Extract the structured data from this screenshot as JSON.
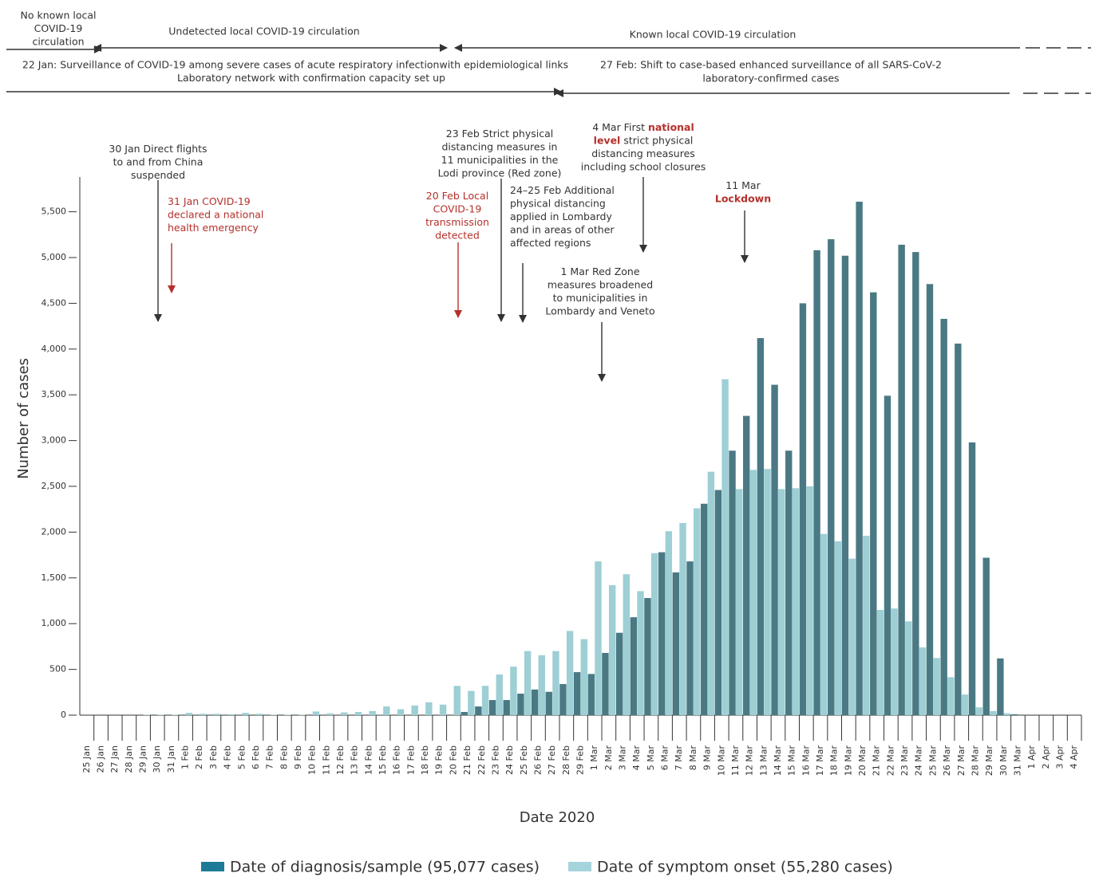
{
  "chart_data": {
    "type": "bar",
    "categories": [
      "25 Jan",
      "26 Jan",
      "27 Jan",
      "28 Jan",
      "29 Jan",
      "30 Jan",
      "31 Jan",
      "1 Feb",
      "2 Feb",
      "3 Feb",
      "4 Feb",
      "5 Feb",
      "6 Feb",
      "7 Feb",
      "8 Feb",
      "9 Feb",
      "10 Feb",
      "11 Feb",
      "12 Feb",
      "13 Feb",
      "14 Feb",
      "15 Feb",
      "16 Feb",
      "17 Feb",
      "18 Feb",
      "19 Feb",
      "20 Feb",
      "21 Feb",
      "22 Feb",
      "23 Feb",
      "24 Feb",
      "25 Feb",
      "26 Feb",
      "27 Feb",
      "28 Feb",
      "29 Feb",
      "1 Mar",
      "2 Mar",
      "3 Mar",
      "4 Mar",
      "5 Mar",
      "6 Mar",
      "7 Mar",
      "8 Mar",
      "9 Mar",
      "10 Mar",
      "11 Mar",
      "12 Mar",
      "13 Mar",
      "14 Mar",
      "15 Mar",
      "16 Mar",
      "17 Mar",
      "18 Mar",
      "19 Mar",
      "20 Mar",
      "21 Mar",
      "22 Mar",
      "23 Mar",
      "24 Mar",
      "25 Mar",
      "26 Mar",
      "27 Mar",
      "28 Mar",
      "29 Mar",
      "30 Mar",
      "31 Mar",
      "1 Apr",
      "2 Apr",
      "3 Apr",
      "4 Apr"
    ],
    "series": [
      {
        "name": "Date of diagnosis/sample (95,077 cases)",
        "color": "#4a7984",
        "values": [
          0,
          0,
          0,
          0,
          0,
          0,
          0,
          0,
          0,
          0,
          0,
          0,
          0,
          0,
          0,
          0,
          0,
          0,
          0,
          0,
          0,
          5,
          0,
          0,
          0,
          0,
          0,
          35,
          95,
          165,
          165,
          235,
          280,
          255,
          340,
          470,
          450,
          680,
          900,
          1070,
          1280,
          1780,
          1560,
          1680,
          2310,
          2460,
          2890,
          3270,
          4120,
          3610,
          2890,
          4500,
          5080,
          5200,
          5020,
          5610,
          4620,
          3490,
          5140,
          5060,
          4710,
          4330,
          4060,
          2980,
          1720,
          620,
          10,
          0,
          0,
          0,
          0
        ]
      },
      {
        "name": "Date of symptom onset (55,280 cases)",
        "color": "#9dcfd5",
        "values": [
          0,
          0,
          0,
          0,
          5,
          5,
          5,
          25,
          15,
          15,
          10,
          25,
          15,
          5,
          5,
          5,
          40,
          20,
          30,
          35,
          45,
          95,
          65,
          105,
          140,
          115,
          320,
          265,
          320,
          445,
          530,
          700,
          655,
          700,
          920,
          830,
          1680,
          1420,
          1540,
          1355,
          1770,
          2010,
          2100,
          2260,
          2660,
          3670,
          2470,
          2680,
          2690,
          2470,
          2480,
          2500,
          1980,
          1900,
          1710,
          1960,
          1150,
          1165,
          1025,
          740,
          625,
          415,
          225,
          85,
          45,
          20,
          0,
          0,
          0,
          0,
          0
        ]
      }
    ],
    "legend_colors": [
      "#1e7b97",
      "#a6d4dc"
    ],
    "ylim": [
      0,
      5880
    ],
    "yticks": [
      0,
      500,
      {
        "value": 1000,
        "label": "1,000"
      },
      {
        "value": 1500,
        "label": "1,500"
      },
      {
        "value": 2000,
        "label": "2,000"
      },
      {
        "value": 2500,
        "label": "2,500"
      },
      {
        "value": 3000,
        "label": "3,000"
      },
      {
        "value": 3500,
        "label": "3,500"
      },
      {
        "value": 4000,
        "label": "4,000"
      },
      {
        "value": 4500,
        "label": "4,500"
      },
      {
        "value": 5000,
        "label": "5,000"
      },
      {
        "value": 5500,
        "label": "5,500"
      }
    ],
    "ylabel": "Number of cases",
    "xlabel": "Date 2020",
    "emphasis_color": "#b5302b",
    "timeline": {
      "periods": [
        {
          "lines": [
            "No known local",
            "COVID-19",
            "circulation"
          ]
        },
        {
          "lines": [
            "Undetected local COVID-19 circulation"
          ]
        },
        {
          "lines": [
            "Known local COVID-19 circulation"
          ]
        }
      ],
      "surveillance": [
        {
          "lines": [
            "22 Jan: Surveillance of COVID-19 among severe cases of acute respiratory infectionwith epidemiological links",
            "Laboratory network with confirmation capacity set up"
          ]
        },
        {
          "lines": [
            "27 Feb: Shift to case-based enhanced surveillance of all SARS-CoV-2",
            "laboratory-confirmed cases"
          ]
        }
      ]
    },
    "annotations": [
      {
        "color": "#333333",
        "lines": [
          [
            "30 Jan Direct flights"
          ],
          [
            "to and from China"
          ],
          [
            "suspended"
          ]
        ]
      },
      {
        "color": "#b5302b",
        "lines": [
          [
            "31 Jan COVID-19"
          ],
          [
            "declared a national"
          ],
          [
            "health emergency"
          ]
        ]
      },
      {
        "color": "#b5302b",
        "lines": [
          [
            "20 Feb Local"
          ],
          [
            "COVID-19"
          ],
          [
            "transmission"
          ],
          [
            "detected"
          ]
        ]
      },
      {
        "color": "#333333",
        "lines": [
          [
            "23 Feb Strict physical"
          ],
          [
            "distancing measures in"
          ],
          [
            "11 municipalities in the"
          ],
          [
            "Lodi province (Red zone)"
          ]
        ]
      },
      {
        "color": "#333333",
        "lines": [
          [
            "24–25 Feb Additional"
          ],
          [
            "physical distancing"
          ],
          [
            "applied in Lombardy"
          ],
          [
            "and in areas of other"
          ],
          [
            "affected regions"
          ]
        ]
      },
      {
        "color": "#333333",
        "lines": [
          [
            "1 Mar Red Zone"
          ],
          [
            "measures broadened"
          ],
          [
            "to municipalities in"
          ],
          [
            "Lombardy and Veneto"
          ]
        ]
      },
      {
        "color": "#333333",
        "lines": [
          [
            "4 Mar First ",
            {
              "text": "national",
              "emphasis": true
            }
          ],
          [
            {
              "text": "level",
              "emphasis": true
            },
            " strict physical"
          ],
          [
            "distancing measures"
          ],
          [
            "including school closures"
          ]
        ]
      },
      {
        "color": "#333333",
        "lines": [
          [
            "11 Mar"
          ],
          [
            {
              "text": "Lockdown",
              "emphasis": true
            }
          ]
        ]
      }
    ]
  }
}
